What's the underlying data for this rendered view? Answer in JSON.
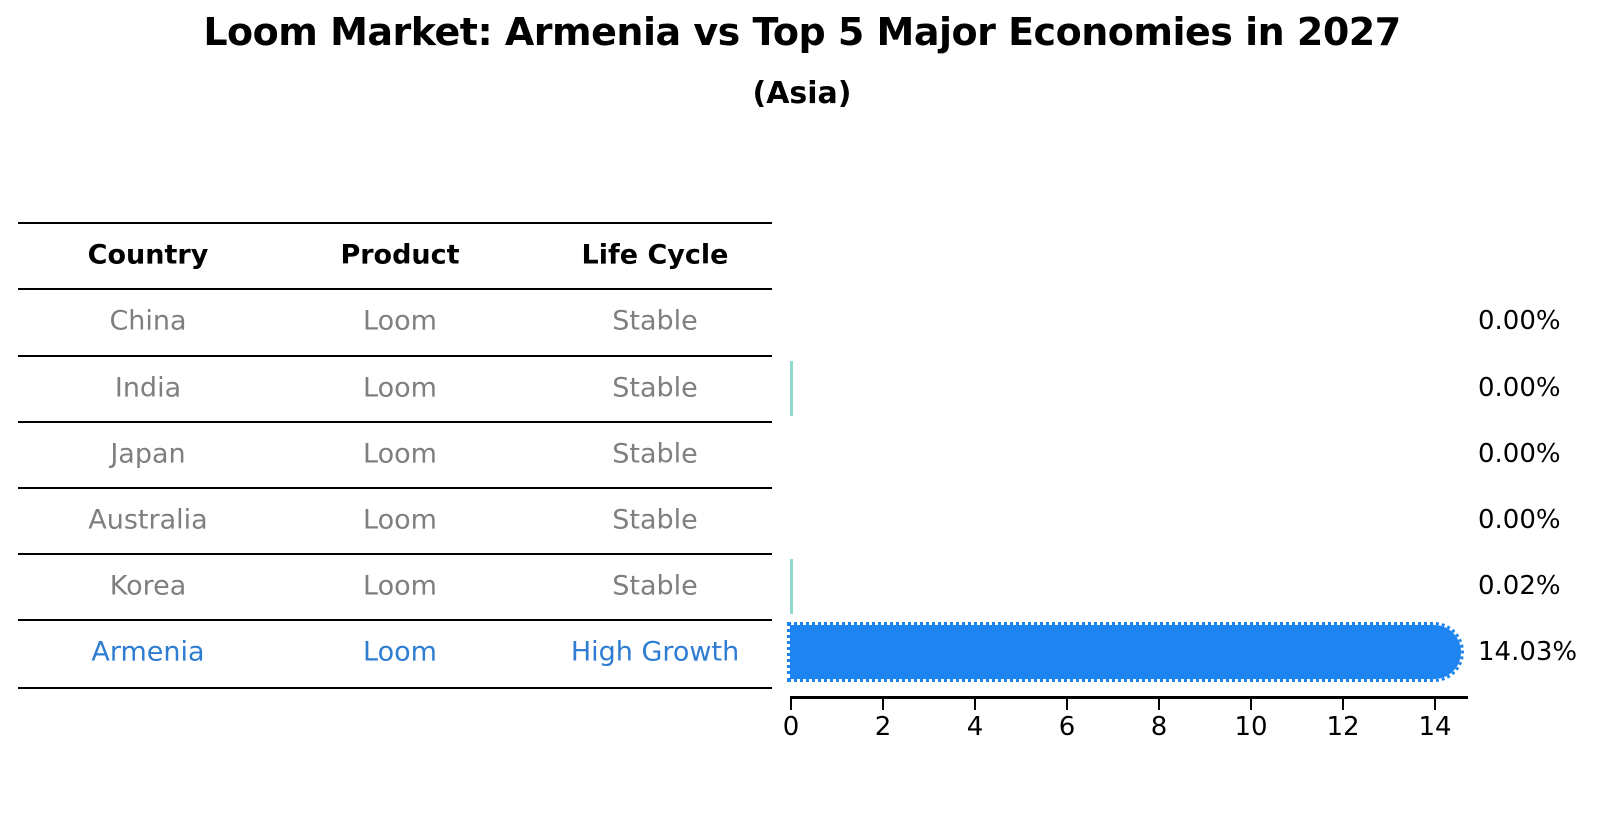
{
  "title": "Loom Market: Armenia vs Top 5 Major Economies in 2027",
  "subtitle": "(Asia)",
  "table": {
    "headers": [
      "Country",
      "Product",
      "Life Cycle"
    ],
    "rows": [
      {
        "country": "China",
        "product": "Loom",
        "life_cycle": "Stable"
      },
      {
        "country": "India",
        "product": "Loom",
        "life_cycle": "Stable"
      },
      {
        "country": "Japan",
        "product": "Loom",
        "life_cycle": "Stable"
      },
      {
        "country": "Australia",
        "product": "Loom",
        "life_cycle": "Stable"
      },
      {
        "country": "Korea",
        "product": "Loom",
        "life_cycle": "Stable"
      },
      {
        "country": "Armenia",
        "product": "Loom",
        "life_cycle": "High Growth"
      }
    ],
    "highlighted_row": "Armenia"
  },
  "chart_data": {
    "type": "bar",
    "orientation": "horizontal",
    "title": "Loom Market: Armenia vs Top 5 Major Economies in 2027",
    "subtitle": "(Asia)",
    "categories": [
      "China",
      "India",
      "Japan",
      "Australia",
      "Korea",
      "Armenia"
    ],
    "values": [
      0.0,
      0.0,
      0.0,
      0.0,
      0.02,
      14.03
    ],
    "value_labels": [
      "0.00%",
      "0.00%",
      "0.00%",
      "0.00%",
      "0.02%",
      "14.03%"
    ],
    "x_ticks": [
      "0",
      "2",
      "4",
      "6",
      "8",
      "10",
      "12",
      "14"
    ],
    "xlim": [
      0,
      14.75
    ],
    "grid": false,
    "legend": "none",
    "tiny_marker_rows": [
      "India",
      "Korea"
    ],
    "colors": {
      "bar": "#1E84EF",
      "tiny_marker": "#8FDACC",
      "highlight_text": "#2E7DD2",
      "row_text": "#7f7f7f",
      "header_text": "#000000",
      "axis": "#000000"
    }
  }
}
